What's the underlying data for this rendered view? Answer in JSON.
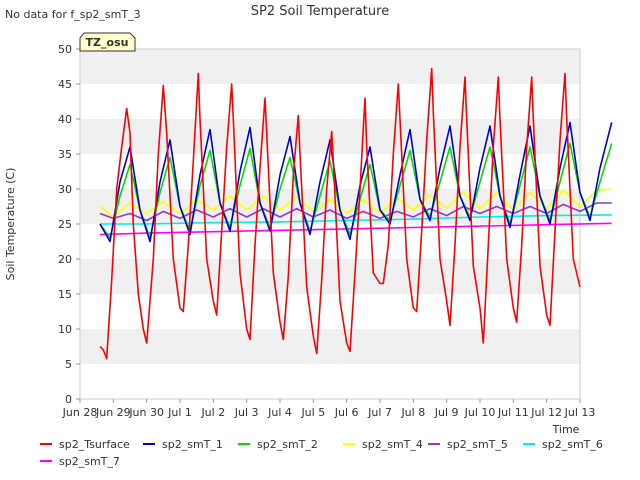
{
  "chart_data": {
    "type": "line",
    "title": "SP2 Soil Temperature",
    "corner_note": "No data for f_sp2_smT_3",
    "site_badge": "TZ_osu",
    "xlabel": "Time",
    "ylabel": "Soil Temperature (C)",
    "ylim": [
      0,
      50
    ],
    "yticks": [
      0,
      5,
      10,
      15,
      20,
      25,
      30,
      35,
      40,
      45,
      50
    ],
    "xlim": [
      "2011-06-28",
      "2011-07-13"
    ],
    "xtick_labels": [
      "Jun 28",
      "Jun 29",
      "Jun 30",
      "Jul 1",
      "Jul 2",
      "Jul 3",
      "Jul 4",
      "Jul 5",
      "Jul 6",
      "Jul 7",
      "Jul 8",
      "Jul 9",
      "Jul 10",
      "Jul 11",
      "Jul 12",
      "Jul 13"
    ],
    "grid": "horizontal bands",
    "legend_placement": "bottom",
    "colors": {
      "sp2_Tsurface": "#ff0000",
      "sp2_smT_1": "#0000cc",
      "sp2_smT_2": "#00dd00",
      "sp2_smT_4": "#ffff00",
      "sp2_smT_5": "#9933dd",
      "sp2_smT_6": "#00eeee",
      "sp2_smT_7": "#ff00ff"
    },
    "series": [
      {
        "name": "sp2_Tsurface",
        "x": [
          0.6,
          0.7,
          0.8,
          0.95,
          1.1,
          1.25,
          1.4,
          1.5,
          1.6,
          1.75,
          1.9,
          2.0,
          2.2,
          2.35,
          2.5,
          2.6,
          2.8,
          3.0,
          3.1,
          3.25,
          3.4,
          3.55,
          3.6,
          3.8,
          4.0,
          4.1,
          4.25,
          4.4,
          4.55,
          4.6,
          4.8,
          5.0,
          5.1,
          5.25,
          5.4,
          5.55,
          5.6,
          5.8,
          6.0,
          6.1,
          6.25,
          6.4,
          6.55,
          6.6,
          6.8,
          7.0,
          7.1,
          7.25,
          7.4,
          7.55,
          7.6,
          7.8,
          8.0,
          8.1,
          8.25,
          8.4,
          8.55,
          8.6,
          8.8,
          9.0,
          9.1,
          9.25,
          9.4,
          9.55,
          9.6,
          9.8,
          10.0,
          10.1,
          10.25,
          10.4,
          10.55,
          10.6,
          10.8,
          11.0,
          11.1,
          11.25,
          11.4,
          11.55,
          11.6,
          11.8,
          12.0,
          12.1,
          12.25,
          12.4,
          12.55,
          12.6,
          12.8,
          13.0,
          13.1,
          13.25,
          13.4,
          13.55,
          13.6,
          13.8,
          14.0,
          14.1,
          14.25,
          14.4,
          14.55,
          14.6,
          14.8,
          15.0,
          15.1,
          15.2,
          15.4,
          15.55,
          15.6,
          15.8,
          15.95
        ],
        "values": [
          7.5,
          7.0,
          5.8,
          17.0,
          30.0,
          36.0,
          41.5,
          38.0,
          25.0,
          15.0,
          10.0,
          8.0,
          20.0,
          35.0,
          44.8,
          38.0,
          20.0,
          13.0,
          12.5,
          22.0,
          34.0,
          46.5,
          40.0,
          20.0,
          14.0,
          12.0,
          24.0,
          36.0,
          45.0,
          40.0,
          18.0,
          10.0,
          8.5,
          22.0,
          33.0,
          43.0,
          38.0,
          18.0,
          11.0,
          8.5,
          17.5,
          32.0,
          40.5,
          35.0,
          16.0,
          9.0,
          6.5,
          17.0,
          30.0,
          38.2,
          34.0,
          14.0,
          8.0,
          6.8,
          18.0,
          30.0,
          43.0,
          36.0,
          18.0,
          16.5,
          16.5,
          22.0,
          35.0,
          45.0,
          40.0,
          20.0,
          13.0,
          12.5,
          24.0,
          37.0,
          47.2,
          41.0,
          20.0,
          14.0,
          10.5,
          22.0,
          36.0,
          46.0,
          40.0,
          19.0,
          13.0,
          8.0,
          22.0,
          36.0,
          46.0,
          40.0,
          20.0,
          13.0,
          11.0,
          22.0,
          36.0,
          46.0,
          40.0,
          19.0,
          12.0,
          10.5,
          24.0,
          37.0,
          46.5,
          40.0,
          20.0,
          16.0,
          null,
          null,
          null,
          null,
          null,
          null,
          null
        ]
      },
      {
        "name": "sp2_smT_1",
        "x": [
          0.6,
          0.9,
          1.2,
          1.5,
          1.8,
          2.1,
          2.4,
          2.7,
          3.0,
          3.3,
          3.6,
          3.9,
          4.2,
          4.5,
          4.8,
          5.1,
          5.4,
          5.7,
          6.0,
          6.3,
          6.6,
          6.9,
          7.2,
          7.5,
          7.8,
          8.1,
          8.4,
          8.7,
          9.0,
          9.3,
          9.6,
          9.9,
          10.2,
          10.5,
          10.8,
          11.1,
          11.4,
          11.7,
          12.0,
          12.3,
          12.6,
          12.9,
          13.2,
          13.5,
          13.8,
          14.1,
          14.4,
          14.7,
          15.0,
          15.3,
          15.6,
          15.95
        ],
        "values": [
          25.0,
          22.5,
          31.0,
          36.0,
          27.0,
          22.5,
          31.0,
          37.0,
          27.5,
          23.5,
          32.0,
          38.5,
          28.0,
          24.0,
          32.5,
          38.8,
          28.0,
          24.0,
          32.0,
          37.5,
          28.0,
          23.5,
          31.0,
          37.0,
          27.0,
          22.8,
          30.5,
          36.0,
          27.0,
          25.0,
          32.0,
          38.5,
          28.5,
          25.5,
          33.0,
          39.0,
          29.0,
          25.5,
          33.0,
          39.0,
          29.0,
          24.5,
          32.0,
          39.0,
          29.0,
          25.0,
          33.0,
          39.5,
          29.5,
          25.5,
          33.0,
          39.5
        ]
      },
      {
        "name": "sp2_smT_2",
        "x": [
          0.6,
          0.9,
          1.2,
          1.5,
          1.8,
          2.1,
          2.4,
          2.7,
          3.0,
          3.3,
          3.6,
          3.9,
          4.2,
          4.5,
          4.8,
          5.1,
          5.4,
          5.7,
          6.0,
          6.3,
          6.6,
          6.9,
          7.2,
          7.5,
          7.8,
          8.1,
          8.4,
          8.7,
          9.0,
          9.3,
          9.6,
          9.9,
          10.2,
          10.5,
          10.8,
          11.1,
          11.4,
          11.7,
          12.0,
          12.3,
          12.6,
          12.9,
          13.2,
          13.5,
          13.8,
          14.1,
          14.4,
          14.7,
          15.0,
          15.3,
          15.6,
          15.95
        ],
        "values": [
          25.0,
          23.0,
          29.0,
          33.5,
          27.0,
          23.0,
          29.5,
          34.5,
          27.5,
          24.0,
          30.5,
          35.5,
          28.0,
          24.5,
          30.5,
          35.8,
          28.0,
          24.5,
          30.0,
          34.5,
          28.0,
          24.0,
          29.0,
          34.0,
          27.0,
          23.5,
          28.5,
          33.5,
          27.0,
          25.5,
          30.5,
          35.5,
          28.5,
          26.0,
          31.0,
          36.0,
          29.0,
          26.0,
          31.0,
          36.0,
          29.0,
          25.0,
          30.5,
          36.0,
          29.0,
          25.5,
          31.0,
          36.5,
          29.5,
          26.0,
          31.0,
          36.5
        ]
      },
      {
        "name": "sp2_smT_4",
        "x": [
          0.6,
          1.0,
          1.5,
          2.0,
          2.5,
          3.0,
          3.5,
          4.0,
          4.5,
          5.0,
          5.5,
          6.0,
          6.5,
          7.0,
          7.5,
          8.0,
          8.5,
          9.0,
          9.5,
          10.0,
          10.5,
          11.0,
          11.5,
          12.0,
          12.5,
          13.0,
          13.5,
          14.0,
          14.5,
          15.0,
          15.5,
          15.95
        ],
        "values": [
          27.5,
          26.0,
          28.0,
          26.5,
          28.2,
          26.5,
          28.5,
          27.0,
          29.0,
          27.0,
          29.0,
          27.0,
          28.8,
          26.8,
          28.5,
          26.5,
          28.5,
          26.5,
          28.8,
          27.0,
          29.2,
          27.2,
          29.5,
          27.2,
          29.5,
          27.0,
          29.5,
          27.2,
          29.8,
          27.5,
          29.8,
          30.0
        ]
      },
      {
        "name": "sp2_smT_5",
        "x": [
          0.6,
          1.0,
          1.5,
          2.0,
          2.5,
          3.0,
          3.5,
          4.0,
          4.5,
          5.0,
          5.5,
          6.0,
          6.5,
          7.0,
          7.5,
          8.0,
          8.5,
          9.0,
          9.5,
          10.0,
          10.5,
          11.0,
          11.5,
          12.0,
          12.5,
          13.0,
          13.5,
          14.0,
          14.5,
          15.0,
          15.5,
          15.95
        ],
        "values": [
          26.5,
          25.8,
          26.5,
          25.5,
          26.8,
          25.8,
          27.0,
          26.0,
          27.2,
          26.0,
          27.2,
          26.0,
          27.2,
          26.0,
          27.0,
          25.8,
          26.8,
          25.8,
          26.8,
          26.0,
          27.2,
          26.2,
          27.5,
          26.5,
          27.5,
          26.5,
          27.5,
          26.5,
          27.8,
          26.8,
          28.0,
          28.0
        ]
      },
      {
        "name": "sp2_smT_6",
        "x": [
          0.6,
          2.0,
          4.0,
          6.0,
          8.0,
          10.0,
          12.0,
          14.0,
          15.95
        ],
        "values": [
          25.0,
          25.0,
          25.2,
          25.3,
          25.5,
          25.7,
          26.0,
          26.2,
          26.3
        ]
      },
      {
        "name": "sp2_smT_7",
        "x": [
          0.6,
          2.0,
          4.0,
          6.0,
          8.0,
          10.0,
          12.0,
          14.0,
          15.95
        ],
        "values": [
          23.5,
          23.7,
          23.9,
          24.1,
          24.3,
          24.5,
          24.7,
          24.9,
          25.1
        ]
      }
    ]
  }
}
